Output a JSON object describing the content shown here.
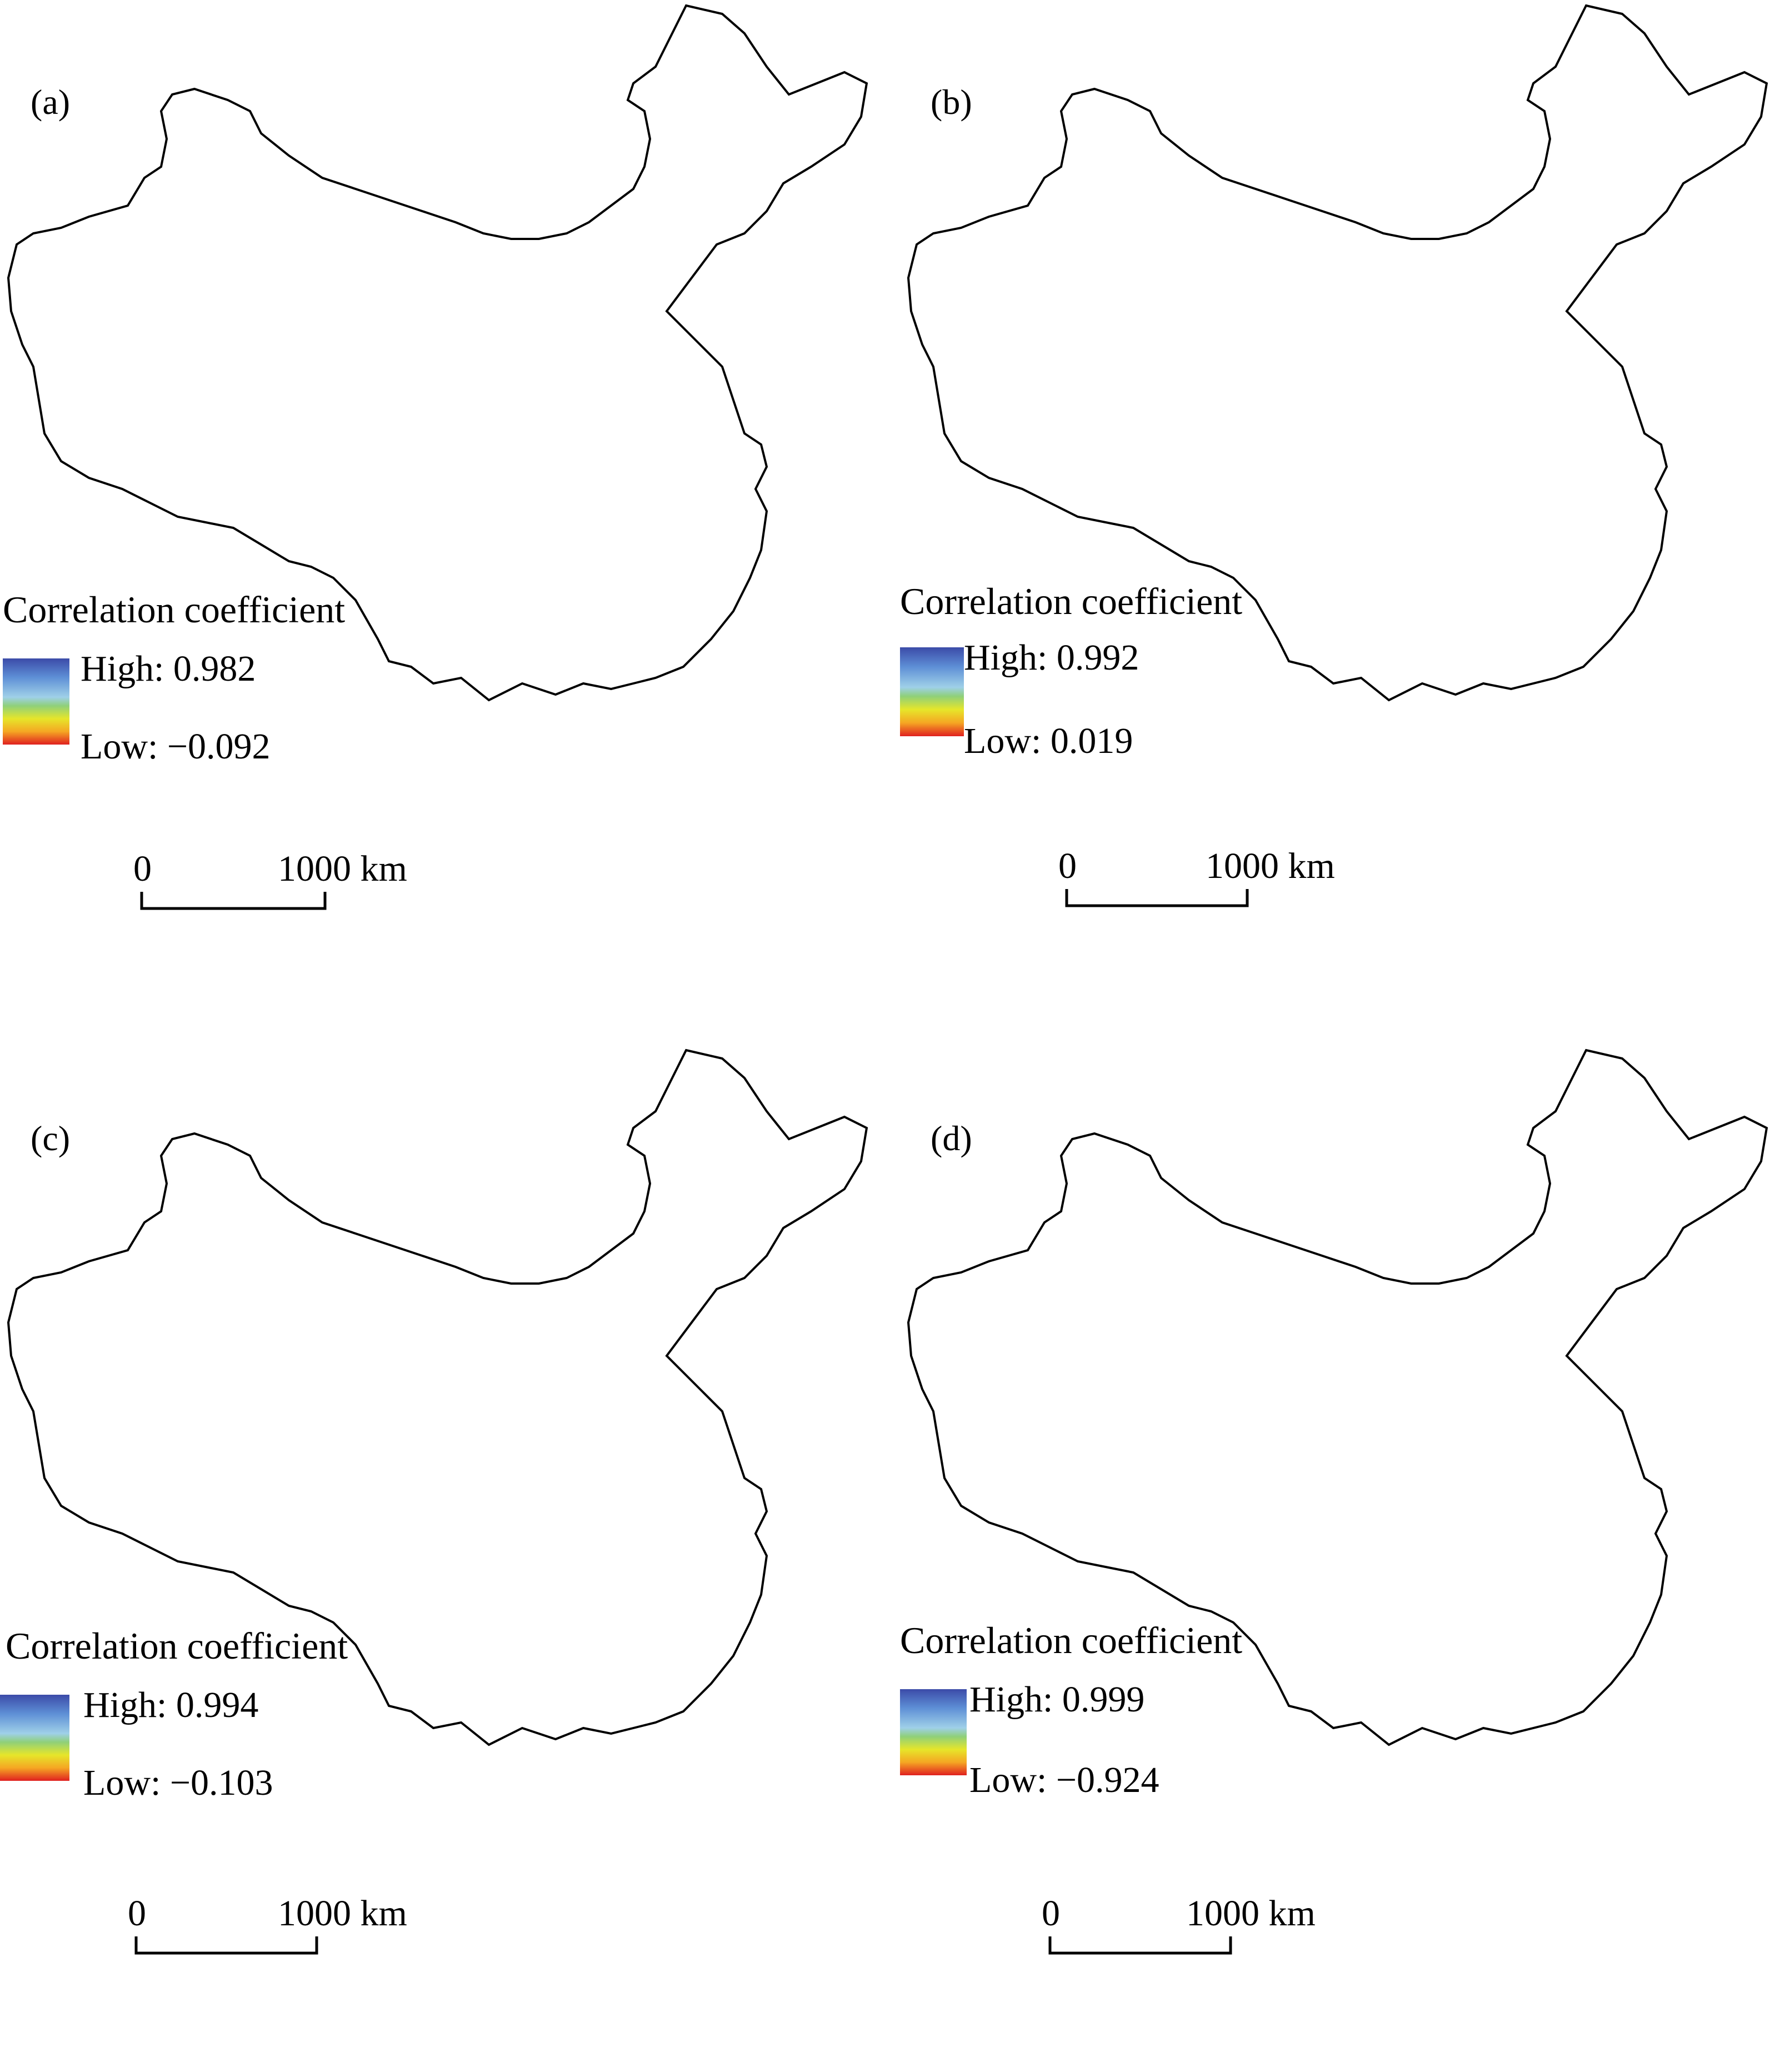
{
  "panels": [
    {
      "label": "(a)",
      "legend_title": "Correlation coefficient",
      "high": "High: 0.982",
      "low": "Low: −0.092",
      "scale_zero": "0",
      "scale_end": "1000 km"
    },
    {
      "label": "(b)",
      "legend_title": "Correlation coefficient",
      "high": "High: 0.992",
      "low": "Low: 0.019",
      "scale_zero": "0",
      "scale_end": "1000 km"
    },
    {
      "label": "(c)",
      "legend_title": "Correlation coefficient",
      "high": "High: 0.994",
      "low": "Low: −0.103",
      "scale_zero": "0",
      "scale_end": "1000 km"
    },
    {
      "label": "(d)",
      "legend_title": "Correlation coefficient",
      "high": "High: 0.999",
      "low": "Low: −0.924",
      "scale_zero": "0",
      "scale_end": "1000 km"
    }
  ],
  "colors": {
    "ramp": [
      "#3b4ba8",
      "#5e8fd6",
      "#9fd0e8",
      "#8fd07a",
      "#e6e62a",
      "#f5a623",
      "#e02020"
    ],
    "boundary": "#000000"
  },
  "legend": {
    "ramp_direction": "high (blue) at top, low (red) at bottom"
  }
}
